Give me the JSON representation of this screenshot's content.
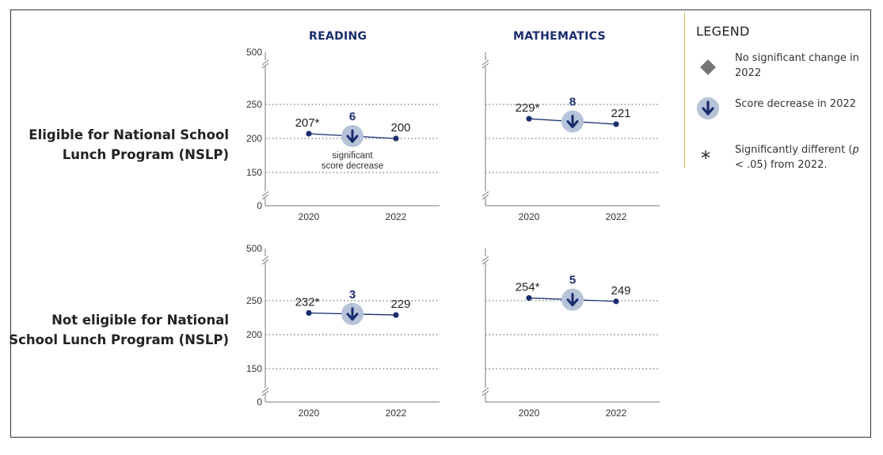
{
  "columns": [
    "READING",
    "MATHEMATICS"
  ],
  "rows": [
    "Eligible for National School Lunch Program (NSLP)",
    "Not eligible for National School Lunch Program (NSLP)"
  ],
  "legend": {
    "title": "LEGEND",
    "items": [
      {
        "icon": "gray-diamond-icon",
        "text": "No significant change in 2022"
      },
      {
        "icon": "score-decrease-arrow-icon",
        "text": "Score decrease in 2022"
      },
      {
        "icon": "asterisk-icon",
        "symbol": "*",
        "text_parts": [
          "Significantly different (",
          "p",
          " < .05) from 2022."
        ]
      }
    ]
  },
  "colors": {
    "line": "#1a2c6e",
    "marker_circle": "#b7c3d9",
    "arrow": "#1a2c6e",
    "diamond": "#757575",
    "legend_rule": "#d4b24c"
  },
  "chart_data": [
    {
      "type": "line",
      "column": "READING",
      "row": "Eligible for National School Lunch Program (NSLP)",
      "x": [
        "2020",
        "2022"
      ],
      "y": [
        207,
        200
      ],
      "point_labels": [
        "207*",
        "200"
      ],
      "change": "6",
      "change_type": "decrease",
      "note": "significant score decrease",
      "yticks": [
        "0",
        "150",
        "200",
        "250",
        "500"
      ],
      "grid": true
    },
    {
      "type": "line",
      "column": "MATHEMATICS",
      "row": "Eligible for National School Lunch Program (NSLP)",
      "x": [
        "2020",
        "2022"
      ],
      "y": [
        229,
        221
      ],
      "point_labels": [
        "229*",
        "221"
      ],
      "change": "8",
      "change_type": "decrease",
      "grid": true
    },
    {
      "type": "line",
      "column": "READING",
      "row": "Not eligible for National School Lunch Program (NSLP)",
      "x": [
        "2020",
        "2022"
      ],
      "y": [
        232,
        229
      ],
      "point_labels": [
        "232*",
        "229"
      ],
      "change": "3",
      "change_type": "decrease",
      "yticks": [
        "0",
        "150",
        "200",
        "250",
        "500"
      ],
      "grid": true
    },
    {
      "type": "line",
      "column": "MATHEMATICS",
      "row": "Not eligible for National School Lunch Program (NSLP)",
      "x": [
        "2020",
        "2022"
      ],
      "y": [
        254,
        249
      ],
      "point_labels": [
        "254*",
        "249"
      ],
      "change": "5",
      "change_type": "decrease",
      "grid": true
    }
  ]
}
